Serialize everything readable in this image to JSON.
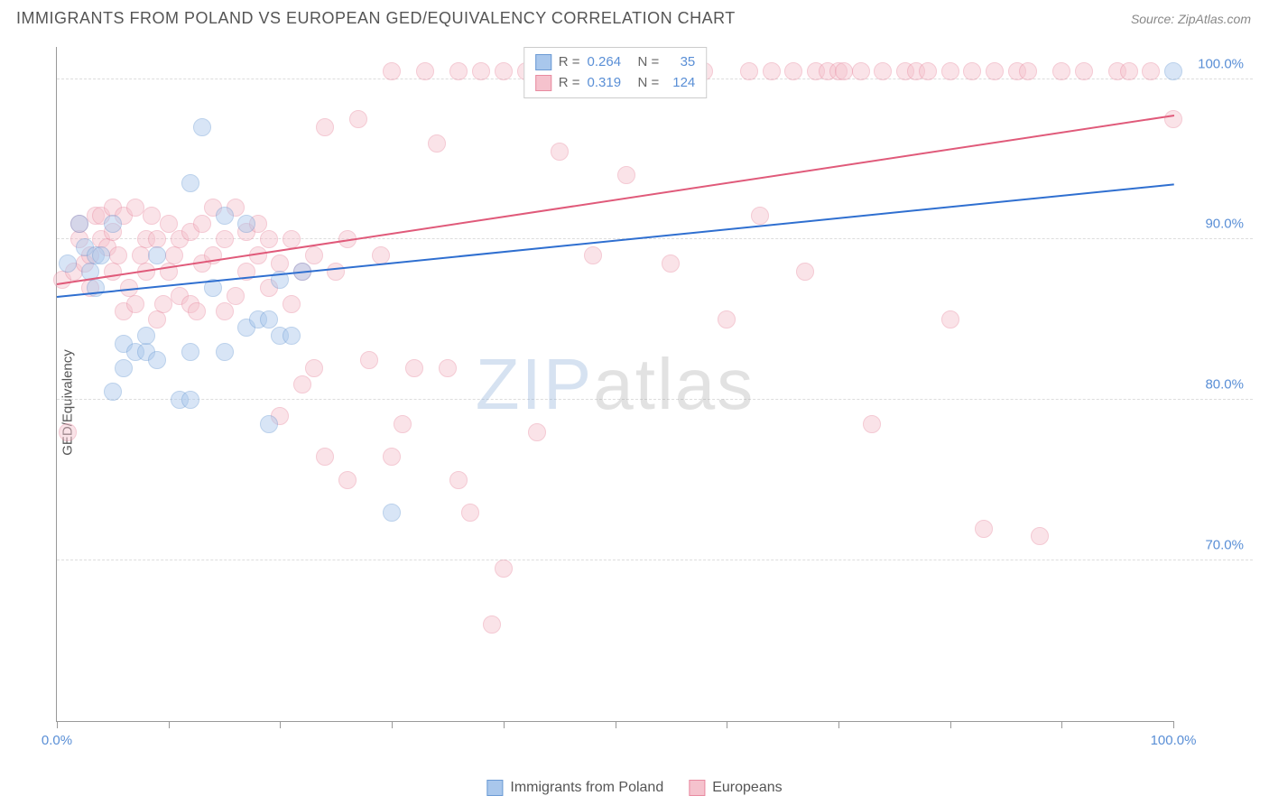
{
  "header": {
    "title": "IMMIGRANTS FROM POLAND VS EUROPEAN GED/EQUIVALENCY CORRELATION CHART",
    "source": "Source: ZipAtlas.com"
  },
  "chart": {
    "type": "scatter",
    "ylabel": "GED/Equivalency",
    "xlim": [
      0,
      100
    ],
    "ylim": [
      60,
      102
    ],
    "background_color": "#ffffff",
    "grid_color": "#dddddd",
    "axis_color": "#999999",
    "tick_label_color": "#5a8fd6",
    "tick_fontsize": 15,
    "y_gridlines": [
      70,
      80,
      90,
      100
    ],
    "y_tick_labels": [
      "70.0%",
      "80.0%",
      "90.0%",
      "100.0%"
    ],
    "x_ticks": [
      0,
      10,
      20,
      30,
      40,
      50,
      60,
      70,
      80,
      90,
      100
    ],
    "x_tick_labels": {
      "0": "0.0%",
      "100": "100.0%"
    },
    "marker_radius": 10,
    "marker_opacity": 0.45,
    "marker_border_width": 1,
    "watermark": {
      "text_a": "ZIP",
      "text_b": "atlas",
      "fontsize": 80
    }
  },
  "series": [
    {
      "name": "Immigrants from Poland",
      "color_fill": "#a9c7ec",
      "color_stroke": "#6a9ad4",
      "trend": {
        "x0": 0,
        "y0": 86.5,
        "x1": 100,
        "y1": 93.5,
        "color": "#2f6fd0",
        "width": 2
      },
      "stats": {
        "R": "0.264",
        "N": "35"
      },
      "points": [
        [
          1,
          88.5
        ],
        [
          2,
          91
        ],
        [
          2.5,
          89.5
        ],
        [
          3,
          88
        ],
        [
          3.5,
          87
        ],
        [
          3.5,
          89
        ],
        [
          4,
          89
        ],
        [
          5,
          80.5
        ],
        [
          5,
          91
        ],
        [
          6,
          82
        ],
        [
          6,
          83.5
        ],
        [
          7,
          83
        ],
        [
          8,
          83
        ],
        [
          8,
          84
        ],
        [
          9,
          82.5
        ],
        [
          9,
          89
        ],
        [
          11,
          80
        ],
        [
          12,
          80
        ],
        [
          12,
          83
        ],
        [
          12,
          93.5
        ],
        [
          13,
          97
        ],
        [
          14,
          87
        ],
        [
          15,
          83
        ],
        [
          15,
          91.5
        ],
        [
          17,
          84.5
        ],
        [
          17,
          91
        ],
        [
          18,
          85
        ],
        [
          19,
          78.5
        ],
        [
          19,
          85
        ],
        [
          20,
          84
        ],
        [
          20,
          87.5
        ],
        [
          21,
          84
        ],
        [
          22,
          88
        ],
        [
          30,
          73
        ],
        [
          100,
          100.5
        ]
      ]
    },
    {
      "name": "Europeans",
      "color_fill": "#f5c2cd",
      "color_stroke": "#e88aa0",
      "trend": {
        "x0": 0,
        "y0": 87.3,
        "x1": 100,
        "y1": 97.8,
        "color": "#e05a7a",
        "width": 2
      },
      "stats": {
        "R": "0.319",
        "N": "124"
      },
      "points": [
        [
          0.5,
          87.5
        ],
        [
          1,
          78
        ],
        [
          1.5,
          88
        ],
        [
          2,
          90
        ],
        [
          2,
          91
        ],
        [
          2.5,
          88.5
        ],
        [
          3,
          87
        ],
        [
          3,
          89
        ],
        [
          3.5,
          91.5
        ],
        [
          4,
          90
        ],
        [
          4,
          91.5
        ],
        [
          4.5,
          89.5
        ],
        [
          5,
          88
        ],
        [
          5,
          90.5
        ],
        [
          5,
          92
        ],
        [
          5.5,
          89
        ],
        [
          6,
          85.5
        ],
        [
          6,
          91.5
        ],
        [
          6.5,
          87
        ],
        [
          7,
          86
        ],
        [
          7,
          92
        ],
        [
          7.5,
          89
        ],
        [
          8,
          88
        ],
        [
          8,
          90
        ],
        [
          8.5,
          91.5
        ],
        [
          9,
          85
        ],
        [
          9,
          90
        ],
        [
          9.5,
          86
        ],
        [
          10,
          88
        ],
        [
          10,
          91
        ],
        [
          10.5,
          89
        ],
        [
          11,
          86.5
        ],
        [
          11,
          90
        ],
        [
          12,
          86
        ],
        [
          12,
          90.5
        ],
        [
          12.5,
          85.5
        ],
        [
          13,
          88.5
        ],
        [
          13,
          91
        ],
        [
          14,
          89
        ],
        [
          14,
          92
        ],
        [
          15,
          85.5
        ],
        [
          15,
          90
        ],
        [
          16,
          86.5
        ],
        [
          16,
          92
        ],
        [
          17,
          88
        ],
        [
          17,
          90.5
        ],
        [
          18,
          89
        ],
        [
          18,
          91
        ],
        [
          19,
          87
        ],
        [
          19,
          90
        ],
        [
          20,
          79
        ],
        [
          20,
          88.5
        ],
        [
          21,
          86
        ],
        [
          21,
          90
        ],
        [
          22,
          81
        ],
        [
          22,
          88
        ],
        [
          23,
          82
        ],
        [
          23,
          89
        ],
        [
          24,
          76.5
        ],
        [
          24,
          97
        ],
        [
          25,
          88
        ],
        [
          26,
          75
        ],
        [
          26,
          90
        ],
        [
          27,
          97.5
        ],
        [
          28,
          82.5
        ],
        [
          29,
          89
        ],
        [
          30,
          76.5
        ],
        [
          30,
          100.5
        ],
        [
          31,
          78.5
        ],
        [
          32,
          82
        ],
        [
          33,
          100.5
        ],
        [
          34,
          96
        ],
        [
          35,
          82
        ],
        [
          36,
          75
        ],
        [
          36,
          100.5
        ],
        [
          37,
          73
        ],
        [
          38,
          100.5
        ],
        [
          39,
          66
        ],
        [
          40,
          69.5
        ],
        [
          40,
          100.5
        ],
        [
          42,
          100.5
        ],
        [
          43,
          78
        ],
        [
          44,
          100.5
        ],
        [
          45,
          95.5
        ],
        [
          46,
          100.5
        ],
        [
          48,
          89
        ],
        [
          49,
          100.5
        ],
        [
          50,
          100.5
        ],
        [
          51,
          94
        ],
        [
          52,
          100.5
        ],
        [
          54,
          100.5
        ],
        [
          55,
          88.5
        ],
        [
          56,
          100.5
        ],
        [
          58,
          100.5
        ],
        [
          60,
          85
        ],
        [
          62,
          100.5
        ],
        [
          63,
          91.5
        ],
        [
          64,
          100.5
        ],
        [
          66,
          100.5
        ],
        [
          67,
          88
        ],
        [
          68,
          100.5
        ],
        [
          69,
          100.5
        ],
        [
          70,
          100.5
        ],
        [
          70.5,
          100.5
        ],
        [
          72,
          100.5
        ],
        [
          73,
          78.5
        ],
        [
          74,
          100.5
        ],
        [
          76,
          100.5
        ],
        [
          77,
          100.5
        ],
        [
          78,
          100.5
        ],
        [
          80,
          85
        ],
        [
          80,
          100.5
        ],
        [
          82,
          100.5
        ],
        [
          83,
          72
        ],
        [
          84,
          100.5
        ],
        [
          86,
          100.5
        ],
        [
          87,
          100.5
        ],
        [
          88,
          71.5
        ],
        [
          90,
          100.5
        ],
        [
          92,
          100.5
        ],
        [
          95,
          100.5
        ],
        [
          96,
          100.5
        ],
        [
          98,
          100.5
        ],
        [
          100,
          97.5
        ]
      ]
    }
  ],
  "legend_top": {
    "rows": [
      {
        "swatch_fill": "#a9c7ec",
        "swatch_stroke": "#6a9ad4",
        "r_label": "R =",
        "r_val": "0.264",
        "n_label": "N =",
        "n_val": "35"
      },
      {
        "swatch_fill": "#f5c2cd",
        "swatch_stroke": "#e88aa0",
        "r_label": "R =",
        "r_val": "0.319",
        "n_label": "N =",
        "n_val": "124"
      }
    ]
  },
  "legend_bottom": {
    "items": [
      {
        "swatch_fill": "#a9c7ec",
        "swatch_stroke": "#6a9ad4",
        "label": "Immigrants from Poland"
      },
      {
        "swatch_fill": "#f5c2cd",
        "swatch_stroke": "#e88aa0",
        "label": "Europeans"
      }
    ]
  }
}
